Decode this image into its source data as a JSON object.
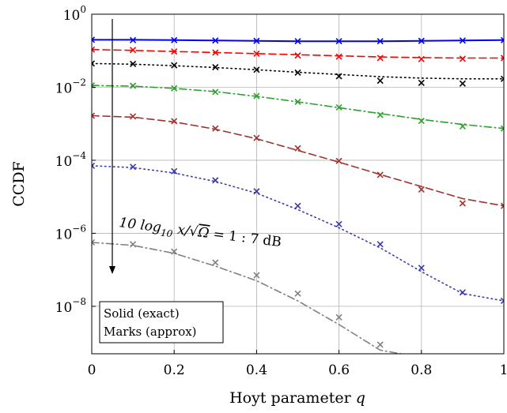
{
  "chart_data": {
    "type": "line",
    "xlabel": "Hoyt parameter q",
    "ylabel": "CCDF",
    "xlim": [
      0,
      1
    ],
    "ylim_log10": [
      -9.3,
      0
    ],
    "y_scale": "log",
    "grid": true,
    "x_ticks": [
      0,
      0.2,
      0.4,
      0.6,
      0.8,
      1
    ],
    "x_tick_labels": [
      "0",
      "0.2",
      "0.4",
      "0.6",
      "0.8",
      "1"
    ],
    "y_ticks_log10": [
      -8,
      -6,
      -4,
      -2,
      0
    ],
    "y_tick_labels": [
      {
        "base": "10",
        "exp": "−8"
      },
      {
        "base": "10",
        "exp": "−6"
      },
      {
        "base": "10",
        "exp": "−4"
      },
      {
        "base": "10",
        "exp": "−2"
      },
      {
        "base": "10",
        "exp": "0"
      }
    ],
    "annotation": {
      "parts": [
        "10 log",
        "10",
        " x/",
        "√",
        "Ω",
        " = 1 : 7 dB"
      ],
      "arrow_direction": "down"
    },
    "legend": {
      "placement": "bottom-left",
      "lines": [
        "Solid (exact)",
        "Marks (approx)"
      ]
    },
    "series": [
      {
        "color": "#0000ff",
        "dash": "solid",
        "x": [
          0,
          0.1,
          0.2,
          0.3,
          0.4,
          0.5,
          0.6,
          0.7,
          0.8,
          0.9,
          1.0
        ],
        "exact_log10": [
          -0.7,
          -0.7,
          -0.71,
          -0.72,
          -0.73,
          -0.74,
          -0.74,
          -0.74,
          -0.73,
          -0.72,
          -0.71
        ],
        "approx_log10": [
          -0.7,
          -0.71,
          -0.71,
          -0.72,
          -0.73,
          -0.74,
          -0.74,
          -0.74,
          -0.73,
          -0.72,
          -0.71
        ]
      },
      {
        "color": "#ff0000",
        "dash": "dashed",
        "x": [
          0,
          0.1,
          0.2,
          0.3,
          0.4,
          0.5,
          0.6,
          0.7,
          0.8,
          0.9,
          1.0
        ],
        "exact_log10": [
          -0.97,
          -0.99,
          -1.02,
          -1.05,
          -1.08,
          -1.11,
          -1.14,
          -1.17,
          -1.19,
          -1.2,
          -1.2
        ],
        "approx_log10": [
          -0.97,
          -0.98,
          -1.02,
          -1.05,
          -1.08,
          -1.13,
          -1.16,
          -1.2,
          -1.23,
          -1.22,
          -1.2
        ]
      },
      {
        "color": "#000000",
        "dash": "dotted",
        "x": [
          0,
          0.1,
          0.2,
          0.3,
          0.4,
          0.5,
          0.6,
          0.7,
          0.8,
          0.9,
          1.0
        ],
        "exact_log10": [
          -1.35,
          -1.37,
          -1.41,
          -1.46,
          -1.52,
          -1.59,
          -1.65,
          -1.71,
          -1.75,
          -1.77,
          -1.77
        ],
        "approx_log10": [
          -1.35,
          -1.36,
          -1.4,
          -1.45,
          -1.52,
          -1.6,
          -1.7,
          -1.82,
          -1.88,
          -1.9,
          -1.77
        ]
      },
      {
        "color": "#2ca02c",
        "dash": "dashdot",
        "x": [
          0,
          0.1,
          0.2,
          0.3,
          0.4,
          0.5,
          0.6,
          0.7,
          0.8,
          0.9,
          1.0
        ],
        "exact_log10": [
          -1.95,
          -1.97,
          -2.03,
          -2.12,
          -2.25,
          -2.4,
          -2.56,
          -2.72,
          -2.88,
          -3.02,
          -3.13
        ],
        "approx_log10": [
          -1.95,
          -1.96,
          -2.03,
          -2.13,
          -2.24,
          -2.4,
          -2.55,
          -2.76,
          -2.92,
          -3.07,
          -3.13
        ]
      },
      {
        "color": "#a0322d",
        "dash": "dashed",
        "x": [
          0,
          0.1,
          0.2,
          0.3,
          0.4,
          0.5,
          0.6,
          0.7,
          0.8,
          0.9,
          1.0
        ],
        "exact_log10": [
          -2.78,
          -2.82,
          -2.95,
          -3.15,
          -3.41,
          -3.73,
          -4.05,
          -4.39,
          -4.72,
          -5.05,
          -5.25
        ],
        "approx_log10": [
          -2.78,
          -2.8,
          -2.93,
          -3.13,
          -3.39,
          -3.67,
          -4.02,
          -4.4,
          -4.8,
          -5.18,
          -5.25
        ]
      },
      {
        "color": "#3a3ab0",
        "dash": "dotted",
        "x": [
          0,
          0.1,
          0.2,
          0.3,
          0.4,
          0.5,
          0.6,
          0.7,
          0.8,
          0.9,
          1.0
        ],
        "exact_log10": [
          -4.15,
          -4.2,
          -4.35,
          -4.58,
          -4.9,
          -5.35,
          -5.85,
          -6.4,
          -7.05,
          -7.65,
          -7.85
        ],
        "approx_log10": [
          -4.15,
          -4.18,
          -4.3,
          -4.55,
          -4.85,
          -5.25,
          -5.75,
          -6.3,
          -6.95,
          -7.62,
          -7.85
        ]
      },
      {
        "color": "#808080",
        "dash": "dashdot",
        "x": [
          0,
          0.1,
          0.2,
          0.3,
          0.4,
          0.5,
          0.6,
          0.7,
          0.75
        ],
        "exact_log10": [
          -6.25,
          -6.33,
          -6.55,
          -6.9,
          -7.3,
          -7.85,
          -8.5,
          -9.2,
          -9.3
        ],
        "approx_log10": [
          -6.25,
          -6.3,
          -6.5,
          -6.8,
          -7.15,
          -7.65,
          -8.3,
          -9.05,
          null
        ]
      }
    ]
  }
}
